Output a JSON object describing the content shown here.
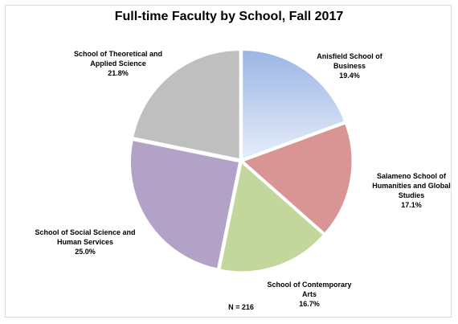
{
  "chart_data": {
    "type": "pie",
    "title": "Full-time Faculty by School, Fall 2017",
    "categories": [
      "Anisfield School of Business",
      "Salameno School of Humanities and Global Studies",
      "School of Contemporary Arts",
      "School of Social Science and Human Services",
      "School of Theoretical and Applied Science"
    ],
    "values": [
      19.4,
      17.1,
      16.7,
      25.0,
      21.8
    ],
    "value_labels": [
      "19.4%",
      "17.1%",
      "16.7%",
      "25.0%",
      "21.8%"
    ],
    "colors": [
      "#a4bde8",
      "#d99594",
      "#c3d69b",
      "#b3a2c7",
      "#bfbfbf"
    ],
    "annotation": "N = 216"
  }
}
